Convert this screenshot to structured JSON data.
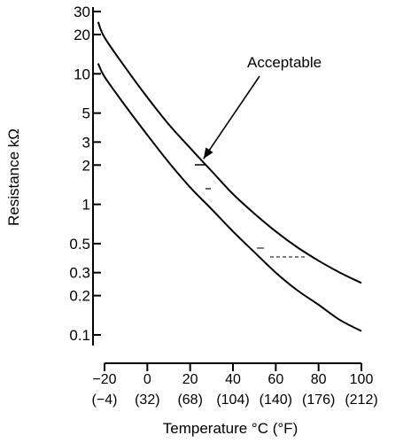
{
  "chart_data": {
    "type": "line",
    "title": "",
    "xlabel": "Temperature °C (°F)",
    "ylabel": "Resistance kΩ",
    "y_scale": "log",
    "ylim": [
      0.1,
      30
    ],
    "xlim": [
      -20,
      100
    ],
    "y_ticks": [
      {
        "value": 0.1,
        "label": "0.1"
      },
      {
        "value": 0.2,
        "label": "0.2"
      },
      {
        "value": 0.3,
        "label": "0.3"
      },
      {
        "value": 0.5,
        "label": "0.5"
      },
      {
        "value": 1,
        "label": "1"
      },
      {
        "value": 2,
        "label": "2"
      },
      {
        "value": 3,
        "label": "3"
      },
      {
        "value": 5,
        "label": "5"
      },
      {
        "value": 10,
        "label": "10"
      },
      {
        "value": 20,
        "label": "20"
      },
      {
        "value": 30,
        "label": "30"
      }
    ],
    "x_ticks": [
      {
        "value": -20,
        "label": "−20",
        "label2": "(−4)"
      },
      {
        "value": 0,
        "label": "0",
        "label2": "(32)"
      },
      {
        "value": 20,
        "label": "20",
        "label2": "(68)"
      },
      {
        "value": 40,
        "label": "40",
        "label2": "(104)"
      },
      {
        "value": 60,
        "label": "60",
        "label2": "(140)"
      },
      {
        "value": 80,
        "label": "80",
        "label2": "(176)"
      },
      {
        "value": 100,
        "label": "100",
        "label2": "(212)"
      }
    ],
    "series": [
      {
        "x": [
          -23,
          -20,
          -10,
          0,
          10,
          20,
          25,
          30,
          40,
          50,
          60,
          70,
          80,
          90,
          100
        ],
        "y": [
          25,
          19,
          11,
          6.6,
          4.1,
          2.7,
          2.2,
          1.8,
          1.2,
          0.85,
          0.62,
          0.47,
          0.37,
          0.3,
          0.25
        ]
      },
      {
        "x": [
          -23,
          -20,
          -10,
          0,
          10,
          20,
          30,
          40,
          50,
          60,
          70,
          80,
          90,
          100
        ],
        "y": [
          12,
          9.5,
          5.6,
          3.4,
          2.1,
          1.35,
          0.92,
          0.62,
          0.43,
          0.3,
          0.22,
          0.17,
          0.13,
          0.107
        ]
      }
    ],
    "annotations": [
      {
        "text": "Acceptable",
        "points_to": {
          "x": 25,
          "y": 2.1
        }
      }
    ],
    "grid": false,
    "legend": "none"
  }
}
